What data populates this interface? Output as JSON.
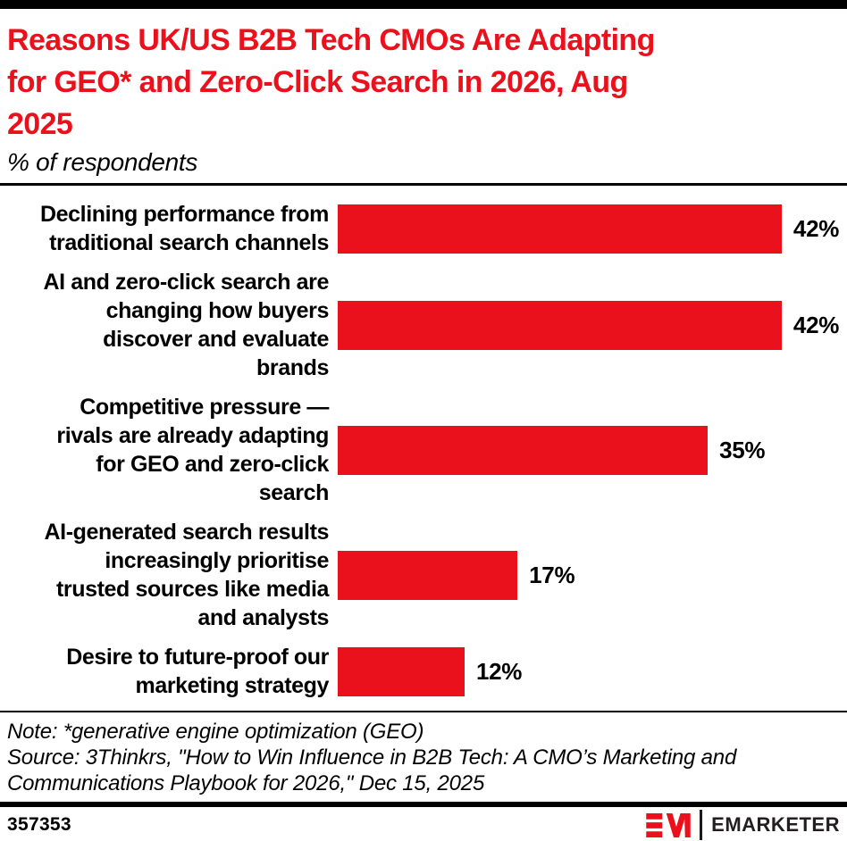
{
  "theme": {
    "accent_red": "#EA111C",
    "text_color": "#000000",
    "background": "#FFFFFF"
  },
  "header": {
    "title": "Reasons UK/US B2B Tech CMOs Are Adapting for GEO* and Zero-Click Search in 2026, Aug 2025",
    "title_lines": [
      "Reasons UK/US B2B Tech CMOs Are Adapting",
      "for GEO* and Zero-Click Search in 2026, Aug",
      "2025"
    ],
    "subtitle": "% of respondents"
  },
  "chart_data": {
    "type": "bar",
    "orientation": "horizontal",
    "title": "Reasons UK/US B2B Tech CMOs Are Adapting for GEO* and Zero-Click Search in 2026, Aug 2025",
    "subtitle": "% of respondents",
    "unit": "%",
    "xlim": [
      0,
      47.5
    ],
    "grid": false,
    "bar_color": "#EA111C",
    "value_label_position": "right-of-bar",
    "categories": [
      "Declining performance from traditional search channels",
      "AI and zero-click search are changing how buyers discover and evaluate brands",
      "Competitive pressure — rivals are already adapting for GEO and zero-click search",
      "AI-generated search results increasingly prioritise trusted sources like media and analysts",
      "Desire to future-proof our marketing strategy"
    ],
    "label_lines": [
      [
        "Declining performance from",
        "traditional search channels"
      ],
      [
        "AI and zero-click search are",
        "changing how buyers",
        "discover and evaluate",
        "brands"
      ],
      [
        "Competitive pressure —",
        "rivals are already adapting",
        "for GEO and zero-click",
        "search"
      ],
      [
        "AI-generated search results",
        "increasingly prioritise",
        "trusted sources like media",
        "and analysts"
      ],
      [
        "Desire to future-proof our",
        "marketing strategy"
      ]
    ],
    "values": [
      42,
      42,
      35,
      17,
      12
    ],
    "value_labels": [
      "42%",
      "42%",
      "35%",
      "17%",
      "12%"
    ]
  },
  "footnote": {
    "note": "Note: *generative engine optimization (GEO)",
    "source": "Source: 3Thinkrs, \"How to Win Influence in B2B Tech: A CMO’s Marketing and Communications Playbook for 2026,\" Dec 15, 2025",
    "source_lines": [
      "Source: 3Thinkrs, \"How to Win Influence in B2B Tech: A CMO’s Marketing and",
      "Communications Playbook for 2026,\" Dec 15, 2025"
    ]
  },
  "footer": {
    "chart_id": "357353",
    "brand": "EMARKETER"
  }
}
